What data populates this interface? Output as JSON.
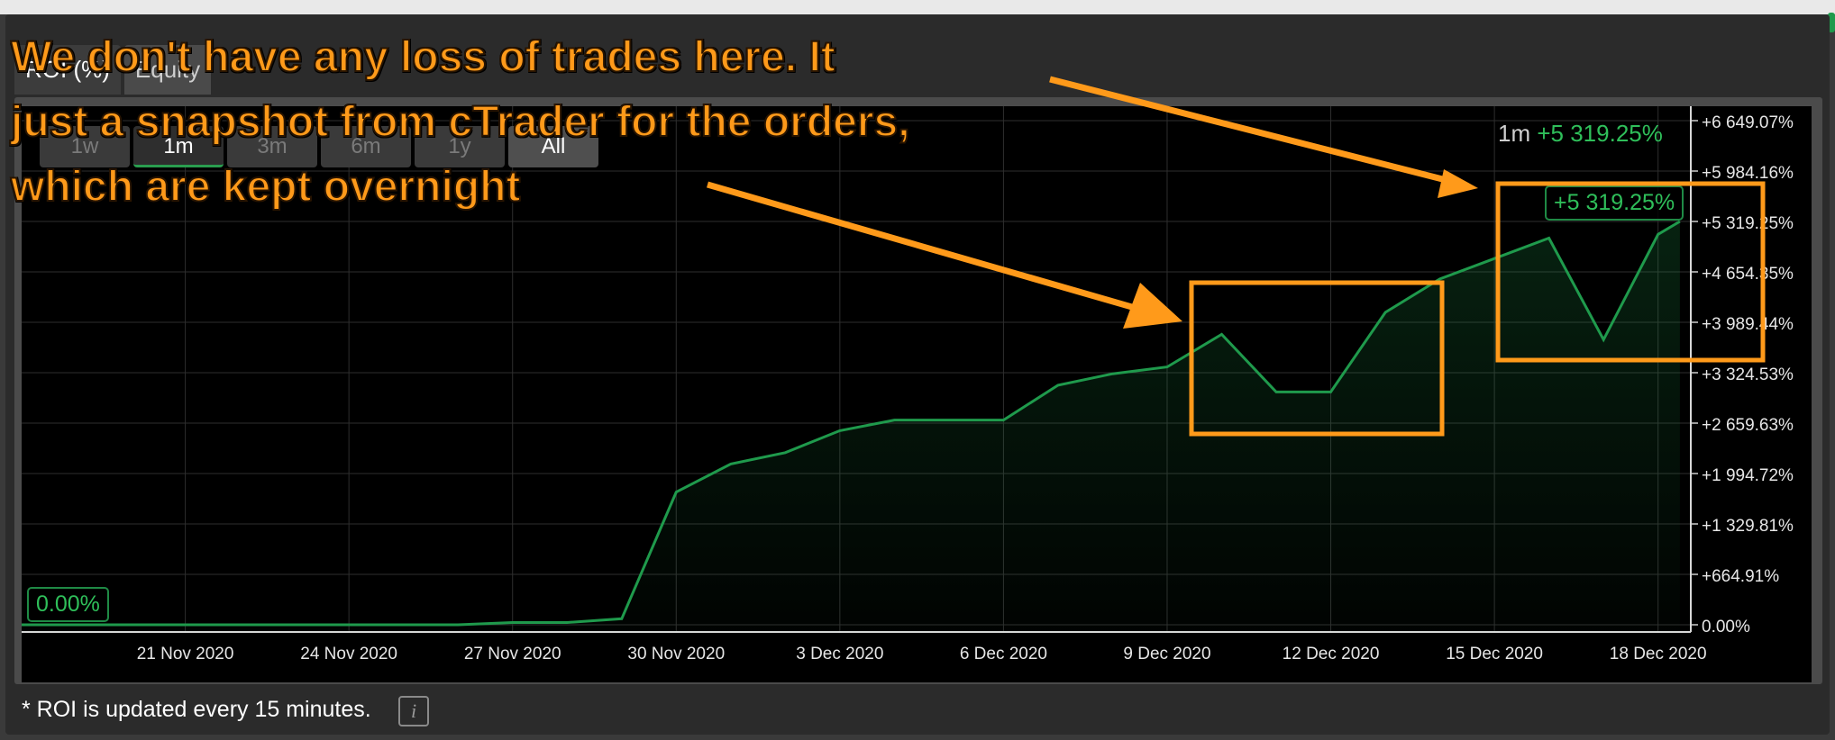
{
  "tabs": [
    {
      "label": "ROI (%)",
      "active": true
    },
    {
      "label": "Equity",
      "active": false
    }
  ],
  "range_buttons": [
    {
      "label": "1w",
      "state": "normal"
    },
    {
      "label": "1m",
      "state": "selected"
    },
    {
      "label": "3m",
      "state": "disabled"
    },
    {
      "label": "6m",
      "state": "disabled"
    },
    {
      "label": "1y",
      "state": "disabled"
    },
    {
      "label": "All",
      "state": "all"
    }
  ],
  "period_readout": {
    "period": "1m",
    "value": "+5 319.25%"
  },
  "start_badge": "0.00%",
  "end_badge": "+5 319.25%",
  "footer_note": "* ROI is updated every 15 minutes.",
  "info_icon": "i",
  "annotation": {
    "lines": [
      "We don't have any loss of trades here. It",
      "just a snapshot from cTrader for the orders,",
      "which are kept overnight"
    ]
  },
  "colors": {
    "line": "#1f9a4c",
    "label_green": "#2fbf5a",
    "annotation": "#ff9a1a",
    "background": "#000000"
  },
  "chart_data": {
    "type": "area",
    "title": "",
    "xlabel": "",
    "ylabel": "",
    "x_ticks": [
      "21 Nov 2020",
      "24 Nov 2020",
      "27 Nov 2020",
      "30 Nov 2020",
      "3 Dec 2020",
      "6 Dec 2020",
      "9 Dec 2020",
      "12 Dec 2020",
      "15 Dec 2020",
      "18 Dec 2020"
    ],
    "x_tick_days": [
      21,
      24,
      27,
      30,
      33,
      36,
      39,
      42,
      45,
      48
    ],
    "y_ticks": [
      {
        "value": 0,
        "label": "0.00%"
      },
      {
        "value": 664.91,
        "label": "+664.91%"
      },
      {
        "value": 1329.81,
        "label": "+1 329.81%"
      },
      {
        "value": 1994.72,
        "label": "+1 994.72%"
      },
      {
        "value": 2659.63,
        "label": "+2 659.63%"
      },
      {
        "value": 3324.53,
        "label": "+3 324.53%"
      },
      {
        "value": 3989.44,
        "label": "+3 989.44%"
      },
      {
        "value": 4654.35,
        "label": "+4 654.35%"
      },
      {
        "value": 5319.25,
        "label": "+5 319.25%"
      },
      {
        "value": 5984.16,
        "label": "+5 984.16%"
      },
      {
        "value": 6649.07,
        "label": "+6 649.07%"
      }
    ],
    "ylim": [
      0,
      6649.07
    ],
    "xlim_days": [
      18,
      48.6
    ],
    "grid": true,
    "series": [
      {
        "x_days": [
          18,
          26,
          27,
          28,
          29,
          30,
          31,
          32,
          33,
          34,
          35,
          36,
          37,
          38,
          39,
          40,
          41,
          42,
          43,
          44,
          45,
          46,
          47,
          48,
          48.4
        ],
        "values": [
          0,
          0,
          30,
          30,
          80,
          1750,
          2120,
          2270,
          2560,
          2700,
          2700,
          2700,
          3160,
          3310,
          3400,
          3830,
          3070,
          3070,
          4120,
          4560,
          4830,
          5100,
          3760,
          5150,
          5319.25
        ]
      }
    ]
  }
}
